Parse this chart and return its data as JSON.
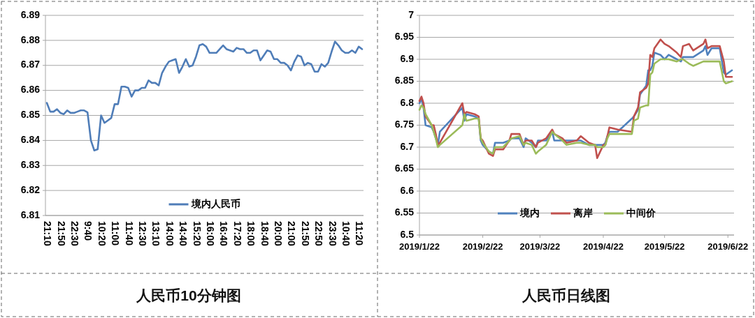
{
  "chart_data": [
    {
      "type": "line",
      "title": "人民币10分钟图",
      "categories": [
        "21:10",
        null,
        null,
        null,
        "21:50",
        null,
        null,
        null,
        "22:30",
        null,
        null,
        null,
        "9:40",
        null,
        null,
        null,
        "10:20",
        null,
        null,
        null,
        "11:00",
        null,
        null,
        null,
        "11:40",
        null,
        null,
        null,
        "12:30",
        null,
        null,
        null,
        "13:10",
        null,
        null,
        null,
        "14:00",
        null,
        null,
        null,
        "14:40",
        null,
        null,
        null,
        "15:20",
        null,
        null,
        null,
        "16:00",
        null,
        null,
        null,
        "16:40",
        null,
        null,
        null,
        "17:20",
        null,
        null,
        null,
        "18:00",
        null,
        null,
        null,
        "18:40",
        null,
        null,
        null,
        "20:00",
        null,
        null,
        null,
        "21:00",
        null,
        null,
        null,
        "21:50",
        null,
        null,
        null,
        "22:50",
        null,
        null,
        null,
        "23:30",
        null,
        null,
        null,
        "10:40",
        null,
        null,
        null,
        "11:20",
        null
      ],
      "series": [
        {
          "name": "境内人民币",
          "color": "#4f7db8",
          "values": [
            6.855,
            6.8515,
            6.8515,
            6.8525,
            6.851,
            6.8505,
            6.852,
            6.851,
            6.851,
            6.8515,
            6.852,
            6.852,
            6.8512,
            6.84,
            6.836,
            6.8365,
            6.85,
            6.847,
            6.848,
            6.849,
            6.8545,
            6.8545,
            6.8615,
            6.8615,
            6.861,
            6.8575,
            6.86,
            6.86,
            6.861,
            6.861,
            6.864,
            6.863,
            6.863,
            6.862,
            6.867,
            6.8695,
            6.8715,
            6.872,
            6.8725,
            6.867,
            6.8695,
            6.8725,
            6.8695,
            6.87,
            6.8735,
            6.878,
            6.8785,
            6.8775,
            6.875,
            6.875,
            6.875,
            6.8765,
            6.878,
            6.8765,
            6.876,
            6.8755,
            6.877,
            6.8765,
            6.8765,
            6.875,
            6.875,
            6.876,
            6.876,
            6.872,
            6.874,
            6.876,
            6.8755,
            6.8725,
            6.8725,
            6.871,
            6.871,
            6.87,
            6.868,
            6.8715,
            6.874,
            6.8735,
            6.87,
            6.871,
            6.8705,
            6.8675,
            6.8675,
            6.8705,
            6.8695,
            6.871,
            6.8755,
            6.8795,
            6.878,
            6.876,
            6.875,
            6.875,
            6.876,
            6.875,
            6.8775,
            6.8765
          ]
        }
      ],
      "ylim": [
        6.81,
        6.89
      ],
      "yticks": [
        6.81,
        6.82,
        6.83,
        6.84,
        6.85,
        6.86,
        6.87,
        6.88,
        6.89
      ],
      "grid": "y",
      "legend": "bottom"
    },
    {
      "type": "line",
      "title": "人民币日线图",
      "x": [
        "2019-01-22",
        "2019-01-23",
        "2019-01-24",
        "2019-01-25",
        "2019-01-28",
        "2019-01-29",
        "2019-01-30",
        "2019-01-31",
        "2019-02-01",
        "2019-02-12",
        "2019-02-13",
        "2019-02-14",
        "2019-02-18",
        "2019-02-20",
        "2019-02-21",
        "2019-02-22",
        "2019-02-25",
        "2019-02-27",
        "2019-02-28",
        "2019-03-04",
        "2019-03-07",
        "2019-03-08",
        "2019-03-12",
        "2019-03-14",
        "2019-03-15",
        "2019-03-18",
        "2019-03-20",
        "2019-03-21",
        "2019-03-25",
        "2019-03-28",
        "2019-03-29",
        "2019-04-02",
        "2019-04-04",
        "2019-04-09",
        "2019-04-11",
        "2019-04-15",
        "2019-04-18",
        "2019-04-19",
        "2019-04-22",
        "2019-04-23",
        "2019-04-24",
        "2019-04-25",
        "2019-04-29",
        "2019-05-06",
        "2019-05-07",
        "2019-05-09",
        "2019-05-10",
        "2019-05-13",
        "2019-05-14",
        "2019-05-15",
        "2019-05-16",
        "2019-05-17",
        "2019-05-20",
        "2019-05-22",
        "2019-05-24",
        "2019-05-28",
        "2019-05-30",
        "2019-05-31",
        "2019-06-03",
        "2019-06-05",
        "2019-06-10",
        "2019-06-11",
        "2019-06-12",
        "2019-06-14",
        "2019-06-18",
        "2019-06-20",
        "2019-06-21",
        "2019-06-24"
      ],
      "series": [
        {
          "name": "境内",
          "color": "#4f81bd",
          "values": [
            6.8,
            6.81,
            6.79,
            6.75,
            6.745,
            6.735,
            6.72,
            6.705,
            6.735,
            6.79,
            6.76,
            6.775,
            6.77,
            6.765,
            6.715,
            6.705,
            6.69,
            6.685,
            6.71,
            6.71,
            6.715,
            6.72,
            6.72,
            6.7,
            6.72,
            6.71,
            6.7,
            6.715,
            6.715,
            6.735,
            6.715,
            6.715,
            6.715,
            6.715,
            6.715,
            6.705,
            6.705,
            6.705,
            6.705,
            6.71,
            6.725,
            6.735,
            6.735,
            6.765,
            6.77,
            6.785,
            6.82,
            6.84,
            6.875,
            6.875,
            6.885,
            6.915,
            6.91,
            6.9,
            6.91,
            6.9,
            6.895,
            6.905,
            6.905,
            6.905,
            6.92,
            6.93,
            6.91,
            6.925,
            6.925,
            6.87,
            6.865,
            6.875
          ]
        },
        {
          "name": "离岸",
          "color": "#c0504d",
          "values": [
            6.805,
            6.815,
            6.8,
            6.77,
            6.75,
            6.75,
            6.73,
            6.705,
            6.71,
            6.8,
            6.775,
            6.78,
            6.775,
            6.77,
            6.72,
            6.715,
            6.685,
            6.68,
            6.695,
            6.695,
            6.715,
            6.73,
            6.73,
            6.705,
            6.715,
            6.715,
            6.7,
            6.71,
            6.72,
            6.74,
            6.73,
            6.72,
            6.71,
            6.715,
            6.725,
            6.71,
            6.705,
            6.675,
            6.705,
            6.705,
            6.725,
            6.745,
            6.74,
            6.735,
            6.77,
            6.79,
            6.825,
            6.835,
            6.845,
            6.91,
            6.905,
            6.925,
            6.945,
            6.935,
            6.93,
            6.915,
            6.905,
            6.93,
            6.935,
            6.92,
            6.935,
            6.945,
            6.925,
            6.93,
            6.93,
            6.895,
            6.86,
            6.86
          ]
        },
        {
          "name": "中间价",
          "color": "#9bbb59",
          "values": [
            6.785,
            6.795,
            6.79,
            6.775,
            6.75,
            6.735,
            6.72,
            6.7,
            6.705,
            6.75,
            6.775,
            6.76,
            6.765,
            6.765,
            6.72,
            6.71,
            6.69,
            6.685,
            6.7,
            6.7,
            6.715,
            6.72,
            6.725,
            6.705,
            6.71,
            6.705,
            6.685,
            6.69,
            6.705,
            6.735,
            6.73,
            6.715,
            6.705,
            6.71,
            6.71,
            6.705,
            6.705,
            6.7,
            6.7,
            6.705,
            6.72,
            6.73,
            6.73,
            6.73,
            6.76,
            6.765,
            6.79,
            6.795,
            6.795,
            6.865,
            6.87,
            6.89,
            6.9,
            6.9,
            6.9,
            6.895,
            6.9,
            6.9,
            6.89,
            6.885,
            6.895,
            6.895,
            6.895,
            6.895,
            6.895,
            6.85,
            6.845,
            6.85
          ]
        }
      ],
      "xlim": [
        "2019-01-22",
        "2019-06-25"
      ],
      "xticks": [
        {
          "value": "2019-01-22",
          "label": "2019/1/22"
        },
        {
          "value": "2019-02-22",
          "label": "2019/2/22"
        },
        {
          "value": "2019-03-22",
          "label": "2019/3/22"
        },
        {
          "value": "2019-04-22",
          "label": "2019/4/22"
        },
        {
          "value": "2019-05-22",
          "label": "2019/5/22"
        },
        {
          "value": "2019-06-22",
          "label": "2019/6/22"
        }
      ],
      "ylim": [
        6.5,
        7
      ],
      "yticks": [
        6.5,
        6.55,
        6.6,
        6.65,
        6.7,
        6.75,
        6.8,
        6.85,
        6.9,
        6.95,
        7
      ],
      "grid": "y",
      "legend": "bottom"
    }
  ]
}
